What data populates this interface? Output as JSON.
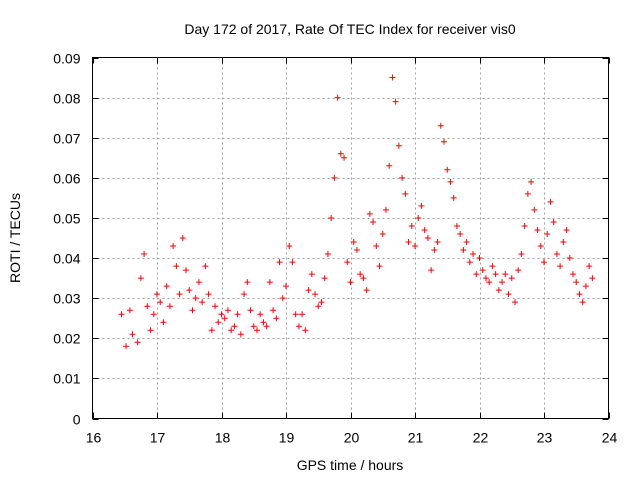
{
  "chart_data": {
    "type": "scatter",
    "title": "Day 172 of 2017, Rate Of TEC Index for receiver vis0",
    "xlabel": "GPS time / hours",
    "ylabel": "ROTI / TECUs",
    "xlim": [
      16,
      24
    ],
    "ylim": [
      0,
      0.09
    ],
    "x_ticks": [
      16,
      17,
      18,
      19,
      20,
      21,
      22,
      23,
      24
    ],
    "y_ticks": [
      0,
      0.01,
      0.02,
      0.03,
      0.04,
      0.05,
      0.06,
      0.07,
      0.08,
      0.09
    ],
    "x_tick_labels": [
      "16",
      "17",
      "18",
      "19",
      "20",
      "21",
      "22",
      "23",
      "24"
    ],
    "y_tick_labels": [
      "0",
      "0.01",
      "0.02",
      "0.03",
      "0.04",
      "0.05",
      "0.06",
      "0.07",
      "0.08",
      "0.09"
    ],
    "grid": true,
    "marker": "+",
    "color": "#ff0000",
    "series": [
      {
        "name": "vis0",
        "x": [
          16.45,
          16.52,
          16.58,
          16.62,
          16.7,
          16.75,
          16.8,
          16.85,
          16.9,
          16.95,
          17.0,
          17.05,
          17.1,
          17.15,
          17.2,
          17.25,
          17.3,
          17.35,
          17.4,
          17.45,
          17.5,
          17.55,
          17.6,
          17.65,
          17.7,
          17.75,
          17.8,
          17.85,
          17.9,
          17.95,
          18.0,
          18.05,
          18.1,
          18.15,
          18.2,
          18.25,
          18.3,
          18.35,
          18.4,
          18.45,
          18.5,
          18.55,
          18.6,
          18.65,
          18.7,
          18.75,
          18.8,
          18.85,
          18.9,
          18.95,
          19.0,
          19.05,
          19.1,
          19.15,
          19.2,
          19.25,
          19.3,
          19.35,
          19.4,
          19.45,
          19.5,
          19.55,
          19.6,
          19.65,
          19.7,
          19.75,
          19.8,
          19.85,
          19.9,
          19.95,
          20.0,
          20.05,
          20.1,
          20.15,
          20.2,
          20.25,
          20.3,
          20.35,
          20.4,
          20.45,
          20.5,
          20.55,
          20.6,
          20.65,
          20.7,
          20.75,
          20.8,
          20.85,
          20.9,
          20.95,
          21.0,
          21.05,
          21.1,
          21.15,
          21.2,
          21.25,
          21.3,
          21.35,
          21.4,
          21.45,
          21.5,
          21.55,
          21.6,
          21.65,
          21.7,
          21.75,
          21.8,
          21.85,
          21.9,
          21.95,
          22.0,
          22.05,
          22.1,
          22.15,
          22.2,
          22.25,
          22.3,
          22.35,
          22.4,
          22.45,
          22.5,
          22.55,
          22.6,
          22.65,
          22.7,
          22.75,
          22.8,
          22.85,
          22.9,
          22.95,
          23.0,
          23.05,
          23.1,
          23.15,
          23.2,
          23.25,
          23.3,
          23.35,
          23.4,
          23.45,
          23.5,
          23.55,
          23.6,
          23.65,
          23.7,
          23.75
        ],
        "y": [
          0.026,
          0.018,
          0.027,
          0.021,
          0.019,
          0.035,
          0.041,
          0.028,
          0.022,
          0.026,
          0.031,
          0.029,
          0.024,
          0.033,
          0.028,
          0.043,
          0.038,
          0.031,
          0.045,
          0.037,
          0.032,
          0.027,
          0.03,
          0.034,
          0.029,
          0.038,
          0.031,
          0.022,
          0.028,
          0.024,
          0.026,
          0.025,
          0.027,
          0.022,
          0.023,
          0.026,
          0.021,
          0.031,
          0.034,
          0.027,
          0.023,
          0.022,
          0.026,
          0.024,
          0.023,
          0.034,
          0.027,
          0.025,
          0.039,
          0.03,
          0.033,
          0.043,
          0.039,
          0.026,
          0.023,
          0.026,
          0.022,
          0.032,
          0.036,
          0.031,
          0.028,
          0.029,
          0.035,
          0.041,
          0.05,
          0.06,
          0.08,
          0.066,
          0.065,
          0.039,
          0.034,
          0.044,
          0.042,
          0.036,
          0.035,
          0.032,
          0.051,
          0.049,
          0.043,
          0.038,
          0.046,
          0.052,
          0.063,
          0.085,
          0.079,
          0.068,
          0.06,
          0.056,
          0.044,
          0.048,
          0.043,
          0.05,
          0.053,
          0.047,
          0.045,
          0.037,
          0.042,
          0.044,
          0.073,
          0.069,
          0.062,
          0.059,
          0.055,
          0.048,
          0.046,
          0.042,
          0.044,
          0.039,
          0.041,
          0.036,
          0.04,
          0.037,
          0.035,
          0.034,
          0.038,
          0.036,
          0.032,
          0.034,
          0.036,
          0.031,
          0.035,
          0.029,
          0.037,
          0.041,
          0.048,
          0.056,
          0.059,
          0.052,
          0.047,
          0.043,
          0.039,
          0.046,
          0.054,
          0.049,
          0.041,
          0.038,
          0.044,
          0.047,
          0.04,
          0.036,
          0.034,
          0.031,
          0.029,
          0.033,
          0.038,
          0.035
        ]
      }
    ]
  }
}
